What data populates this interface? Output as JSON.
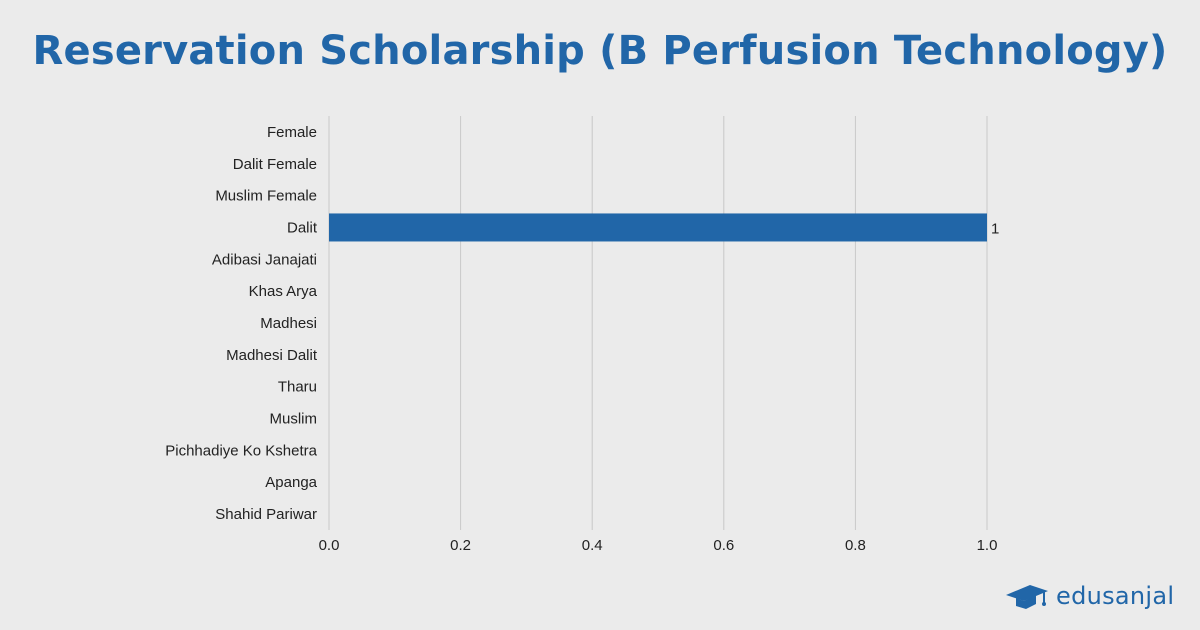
{
  "chart_data": {
    "type": "bar",
    "orientation": "horizontal",
    "title": "Reservation Scholarship (B Perfusion Technology)",
    "categories": [
      "Female",
      "Dalit Female",
      "Muslim Female",
      "Dalit",
      "Adibasi Janajati",
      "Khas Arya",
      "Madhesi",
      "Madhesi Dalit",
      "Tharu",
      "Muslim",
      "Pichhadiye Ko Kshetra",
      "Apanga",
      "Shahid Pariwar"
    ],
    "values": [
      0,
      0,
      0,
      1,
      0,
      0,
      0,
      0,
      0,
      0,
      0,
      0,
      0
    ],
    "data_labels": [
      null,
      null,
      null,
      "1",
      null,
      null,
      null,
      null,
      null,
      null,
      null,
      null,
      null
    ],
    "xlim": [
      0,
      1.0
    ],
    "xticks": [
      "0.0",
      "0.2",
      "0.4",
      "0.6",
      "0.8",
      "1.0"
    ],
    "xlabel": "",
    "ylabel": "",
    "grid": "vertical",
    "legend": "none",
    "colors": {
      "bar": "#2166a8",
      "title": "#2166a8",
      "grid": "#c8c8c8",
      "text": "#222222",
      "background": "#ebebeb"
    }
  },
  "brand": {
    "name": "edusanjal",
    "icon": "graduation-cap-icon"
  }
}
